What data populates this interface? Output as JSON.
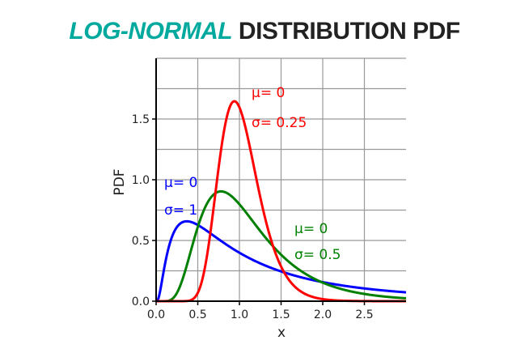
{
  "header": {
    "title_accent": "LOG-NORMAL",
    "title_rest": "DISTRIBUTION PDF",
    "accent_color": "#00A99D",
    "text_color": "#222222"
  },
  "chart_data": {
    "type": "line",
    "title": "LOG-NORMAL DISTRIBUTION PDF",
    "xlabel": "x",
    "ylabel": "PDF",
    "xlim": [
      0,
      3.0
    ],
    "ylim": [
      0,
      2.0
    ],
    "xticks": [
      "0.0",
      "0.5",
      "1.0",
      "1.5",
      "2.0",
      "2.5"
    ],
    "yticks": [
      "0.0",
      "0.5",
      "1.0",
      "1.5"
    ],
    "grid": true,
    "grid_step": {
      "x": 0.5,
      "y": 0.25
    },
    "legend": "inline annotations",
    "series": [
      {
        "name": "μ=0, σ=1",
        "mu": 0,
        "sigma": 1,
        "color": "#0000FF",
        "label_lines": [
          "μ= 0",
          "σ= 1"
        ],
        "x": [
          0.1,
          0.25,
          0.37,
          0.5,
          0.75,
          1.0,
          1.5,
          2.0,
          2.5,
          3.0
        ],
        "values": [
          0.28,
          0.58,
          0.66,
          0.63,
          0.52,
          0.4,
          0.25,
          0.16,
          0.11,
          0.07
        ]
      },
      {
        "name": "μ=0, σ=0.5",
        "mu": 0,
        "sigma": 0.5,
        "color": "#008000",
        "label_lines": [
          "μ= 0",
          "σ= 0.5"
        ],
        "x": [
          0.25,
          0.5,
          0.78,
          1.0,
          1.5,
          2.0,
          2.5,
          3.0
        ],
        "values": [
          0.07,
          0.61,
          0.91,
          0.8,
          0.4,
          0.17,
          0.07,
          0.03
        ]
      },
      {
        "name": "μ=0, σ=0.25",
        "mu": 0,
        "sigma": 0.25,
        "color": "#FF0000",
        "label_lines": [
          "μ= 0",
          "σ= 0.25"
        ],
        "x": [
          0.5,
          0.75,
          0.94,
          1.0,
          1.25,
          1.5,
          2.0
        ],
        "values": [
          0.14,
          1.14,
          1.65,
          1.6,
          0.7,
          0.16,
          0.004
        ]
      }
    ]
  }
}
